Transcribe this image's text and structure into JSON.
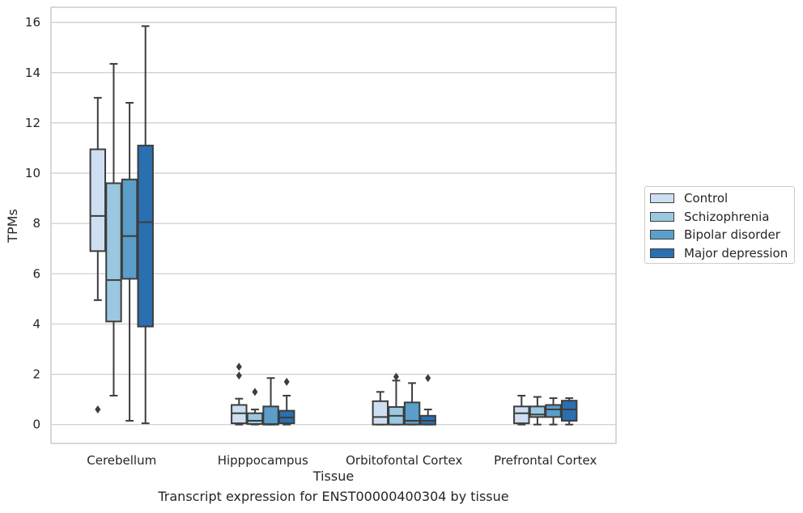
{
  "chart_data": {
    "type": "box",
    "title": "",
    "caption": "Transcript expression for ENST00000400304 by tissue",
    "xlabel": "Tissue",
    "ylabel": "TPMs",
    "ylim": [
      -0.75,
      16.6
    ],
    "yticks": [
      0,
      2,
      4,
      6,
      8,
      10,
      12,
      14,
      16
    ],
    "grid": "horizontal",
    "legend_position": "right",
    "categories": [
      "Cerebellum",
      "Hipppocampus",
      "Orbitofontal Cortex",
      "Prefrontal Cortex"
    ],
    "series": [
      {
        "name": "Control",
        "color": "#cddff0",
        "boxes": [
          {
            "whisker_low": 4.95,
            "q1": 6.9,
            "median": 8.3,
            "q3": 10.95,
            "whisker_high": 13.0,
            "outliers": [
              0.6
            ]
          },
          {
            "whisker_low": 0.0,
            "q1": 0.05,
            "median": 0.45,
            "q3": 0.78,
            "whisker_high": 1.03,
            "outliers": [
              1.95,
              2.3
            ]
          },
          {
            "whisker_low": 0.0,
            "q1": 0.0,
            "median": 0.3,
            "q3": 0.93,
            "whisker_high": 1.3,
            "outliers": []
          },
          {
            "whisker_low": 0.0,
            "q1": 0.05,
            "median": 0.45,
            "q3": 0.72,
            "whisker_high": 1.15,
            "outliers": []
          }
        ]
      },
      {
        "name": "Schizophrenia",
        "color": "#9ac8e0",
        "boxes": [
          {
            "whisker_low": 1.15,
            "q1": 4.1,
            "median": 5.75,
            "q3": 9.6,
            "whisker_high": 14.35,
            "outliers": []
          },
          {
            "whisker_low": 0.0,
            "q1": 0.02,
            "median": 0.15,
            "q3": 0.45,
            "whisker_high": 0.6,
            "outliers": [
              1.3
            ]
          },
          {
            "whisker_low": 0.0,
            "q1": 0.0,
            "median": 0.35,
            "q3": 0.7,
            "whisker_high": 1.75,
            "outliers": [
              1.9
            ]
          },
          {
            "whisker_low": 0.0,
            "q1": 0.3,
            "median": 0.4,
            "q3": 0.72,
            "whisker_high": 1.1,
            "outliers": []
          }
        ]
      },
      {
        "name": "Bipolar disorder",
        "color": "#5a9ec9",
        "boxes": [
          {
            "whisker_low": 0.15,
            "q1": 5.8,
            "median": 7.5,
            "q3": 9.75,
            "whisker_high": 12.8,
            "outliers": []
          },
          {
            "whisker_low": 0.0,
            "q1": 0.0,
            "median": 0.02,
            "q3": 0.72,
            "whisker_high": 1.85,
            "outliers": []
          },
          {
            "whisker_low": 0.0,
            "q1": 0.0,
            "median": 0.15,
            "q3": 0.88,
            "whisker_high": 1.65,
            "outliers": []
          },
          {
            "whisker_low": 0.0,
            "q1": 0.3,
            "median": 0.6,
            "q3": 0.78,
            "whisker_high": 1.05,
            "outliers": []
          }
        ]
      },
      {
        "name": "Major depression",
        "color": "#2a6fb0",
        "boxes": [
          {
            "whisker_low": 0.05,
            "q1": 3.9,
            "median": 8.05,
            "q3": 11.1,
            "whisker_high": 15.85,
            "outliers": []
          },
          {
            "whisker_low": 0.0,
            "q1": 0.05,
            "median": 0.28,
            "q3": 0.55,
            "whisker_high": 1.15,
            "outliers": [
              1.7
            ]
          },
          {
            "whisker_low": 0.0,
            "q1": 0.0,
            "median": 0.15,
            "q3": 0.35,
            "whisker_high": 0.6,
            "outliers": [
              1.85
            ]
          },
          {
            "whisker_low": 0.0,
            "q1": 0.15,
            "median": 0.6,
            "q3": 0.95,
            "whisker_high": 1.05,
            "outliers": []
          }
        ]
      }
    ]
  }
}
